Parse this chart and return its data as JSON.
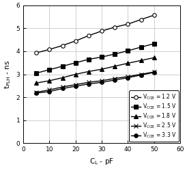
{
  "xlim": [
    0,
    60
  ],
  "ylim": [
    0,
    6
  ],
  "xticks": [
    0,
    10,
    20,
    30,
    40,
    50,
    60
  ],
  "yticks": [
    0,
    1,
    2,
    3,
    4,
    5,
    6
  ],
  "series": [
    {
      "label": "V$_{CCB}$ = 1.2 V",
      "x": [
        5,
        10,
        15,
        20,
        25,
        30,
        35,
        40,
        45,
        50
      ],
      "y": [
        3.93,
        4.08,
        4.25,
        4.45,
        4.68,
        4.88,
        5.05,
        5.18,
        5.38,
        5.57
      ],
      "marker": "o",
      "markersize": 4,
      "markerfacecolor": "white",
      "markeredgecolor": "black",
      "color": "black",
      "linewidth": 1.0
    },
    {
      "label": "V$_{CCB}$ = 1.5 V",
      "x": [
        5,
        10,
        15,
        20,
        25,
        30,
        35,
        40,
        45,
        50
      ],
      "y": [
        3.05,
        3.2,
        3.35,
        3.5,
        3.65,
        3.75,
        3.88,
        4.02,
        4.18,
        4.33
      ],
      "marker": "s",
      "markersize": 4,
      "markerfacecolor": "black",
      "markeredgecolor": "black",
      "color": "black",
      "linewidth": 1.0
    },
    {
      "label": "V$_{CCB}$ = 1.8 V",
      "x": [
        5,
        10,
        15,
        20,
        25,
        30,
        35,
        40,
        45,
        50
      ],
      "y": [
        2.62,
        2.72,
        2.85,
        3.0,
        3.12,
        3.22,
        3.35,
        3.48,
        3.6,
        3.72
      ],
      "marker": "^",
      "markersize": 4,
      "markerfacecolor": "black",
      "markeredgecolor": "black",
      "color": "black",
      "linewidth": 1.0
    },
    {
      "label": "V$_{CCB}$ = 2.5 V",
      "x": [
        5,
        10,
        15,
        20,
        25,
        30,
        35,
        40,
        45,
        50
      ],
      "y": [
        2.22,
        2.32,
        2.45,
        2.55,
        2.65,
        2.72,
        2.82,
        2.9,
        3.0,
        3.1
      ],
      "marker": "x",
      "markersize": 4,
      "markerfacecolor": "black",
      "markeredgecolor": "black",
      "color": "black",
      "linewidth": 1.0
    },
    {
      "label": "V$_{CCB}$ = 3.3 V",
      "x": [
        5,
        10,
        15,
        20,
        25,
        30,
        35,
        40,
        45,
        50
      ],
      "y": [
        2.18,
        2.25,
        2.38,
        2.48,
        2.58,
        2.65,
        2.75,
        2.85,
        2.97,
        3.08
      ],
      "marker": "o",
      "markersize": 4,
      "markerfacecolor": "black",
      "markeredgecolor": "black",
      "color": "black",
      "linewidth": 1.0
    }
  ],
  "legend_loc": "lower right",
  "legend_fontsize": 5.5,
  "tick_fontsize": 6.5,
  "label_fontsize": 7.5,
  "background_color": "#ffffff",
  "grid_color": "#c8c8c8"
}
